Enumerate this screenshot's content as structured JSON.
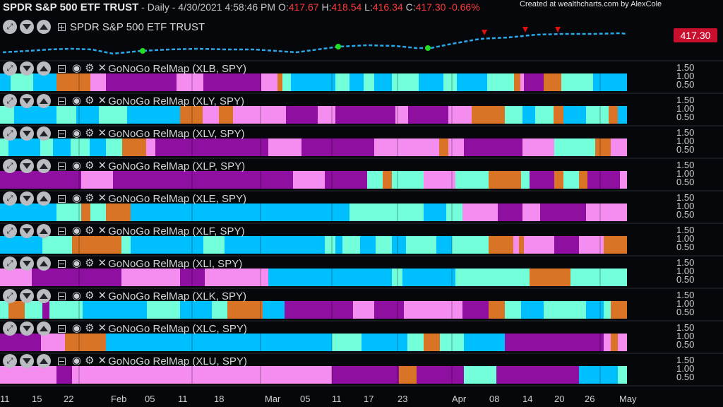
{
  "header": {
    "symbol": "SPDR S&P 500 ETF TRUST",
    "period_label": "- Daily - 4/30/2021 4:58:46 PM",
    "o_label": "O:",
    "o_value": "417.67",
    "h_label": "H:",
    "h_value": "418.54",
    "l_label": "L:",
    "l_value": "416.34",
    "c_label": "C:",
    "c_value": "417.30",
    "change": "-0.66%"
  },
  "credit": "Created at wealthcharts.com by AlexCole",
  "main_pane": {
    "title": "SPDR S&P 500 ETF TRUST",
    "last_price": "417.30"
  },
  "panes": [
    {
      "title": "GoNoGo RelMap (XLB, SPY)"
    },
    {
      "title": "GoNoGo RelMap (XLY, SPY)"
    },
    {
      "title": "GoNoGo RelMap (XLV, SPY)"
    },
    {
      "title": "GoNoGo RelMap (XLP, SPY)"
    },
    {
      "title": "GoNoGo RelMap (XLE, SPY)"
    },
    {
      "title": "GoNoGo RelMap (XLF, SPY)"
    },
    {
      "title": "GoNoGo RelMap (XLI, SPY)"
    },
    {
      "title": "GoNoGo RelMap (XLK, SPY)"
    },
    {
      "title": "GoNoGo RelMap (XLC, SPY)"
    },
    {
      "title": "GoNoGo RelMap (XLU, SPY)"
    }
  ],
  "y_ticks": [
    "1.50",
    "1.00",
    "0.50"
  ],
  "x_ticks": [
    "11",
    "15",
    "22",
    "Feb",
    "05",
    "11",
    "18",
    "Mar",
    "05",
    "11",
    "17",
    "23",
    "Apr",
    "08",
    "14",
    "20",
    "26",
    "May"
  ],
  "colors": {
    "bright_blue": "#00bfff",
    "aqua": "#73ffd9",
    "amber": "#d97426",
    "pink": "#f58cf0",
    "purple": "#8e0fa0",
    "bg": "#05070a",
    "price_box": "#c8102e"
  },
  "chart_data": {
    "type": "heatmap",
    "title": "SPDR S&P 500 ETF TRUST",
    "x": [
      "11",
      "15",
      "22",
      "Feb",
      "05",
      "11",
      "18",
      "Mar",
      "05",
      "11",
      "17",
      "23",
      "Apr",
      "08",
      "14",
      "20",
      "26",
      "May"
    ],
    "price": {
      "ohlc": {
        "open": 417.67,
        "high": 418.54,
        "low": 416.34,
        "close": 417.3
      },
      "change_pct": -0.66,
      "last": 417.3
    },
    "series": [
      {
        "name": "XLB, SPY",
        "colors": [
          "B",
          "B",
          "B",
          "B",
          "B",
          "B",
          "A",
          "A",
          "A",
          "A",
          "A",
          "A",
          "A",
          "P",
          "P",
          "P",
          "P",
          "P",
          "P",
          "P",
          "P",
          "P",
          "K",
          "K",
          "K",
          "P",
          "P",
          "P",
          "P",
          "P",
          "P",
          "K",
          "K",
          "P",
          "P",
          "P",
          "P",
          "P",
          "P",
          "K",
          "K",
          "K",
          "P",
          "A",
          "A",
          "B",
          "B",
          "B",
          "B",
          "B",
          "B",
          "B",
          "B",
          "B",
          "B",
          "B",
          "B",
          "B",
          "B",
          "B",
          "B",
          "A",
          "A",
          "A",
          "A",
          "A",
          "B",
          "B",
          "B",
          "B",
          "B",
          "B",
          "B",
          "A",
          "A",
          "A",
          "A",
          "A",
          "B",
          "B",
          "B",
          "B",
          "B",
          "B",
          "B",
          "A",
          "A",
          "A",
          "A",
          "A",
          "B",
          "B",
          "B",
          "B",
          "B",
          "B",
          "B",
          "A",
          "A",
          "A",
          "A",
          "A",
          "B",
          "B",
          "B",
          "B",
          "B",
          "B",
          "B",
          "A",
          "A",
          "A",
          "A",
          "A",
          "B",
          "B",
          "B",
          "B",
          "B",
          "B",
          "B",
          "A",
          "A",
          "A",
          "A",
          "A",
          "A",
          "A",
          "A",
          "A",
          "A",
          "A",
          "A",
          "A",
          "A",
          "A",
          "A",
          "A",
          "A",
          "A",
          "A",
          "A",
          "A",
          "A",
          "A",
          "A",
          "A",
          "A",
          "A",
          "A",
          "A",
          "A",
          "A",
          "A",
          "A",
          "A",
          "A",
          "A",
          "A",
          "A",
          "A",
          "A",
          "A",
          "A",
          "A",
          "A",
          "A",
          "A",
          "A",
          "A",
          "A",
          "A",
          "A",
          "A",
          "A",
          "A"
        ]
      }
    ]
  }
}
